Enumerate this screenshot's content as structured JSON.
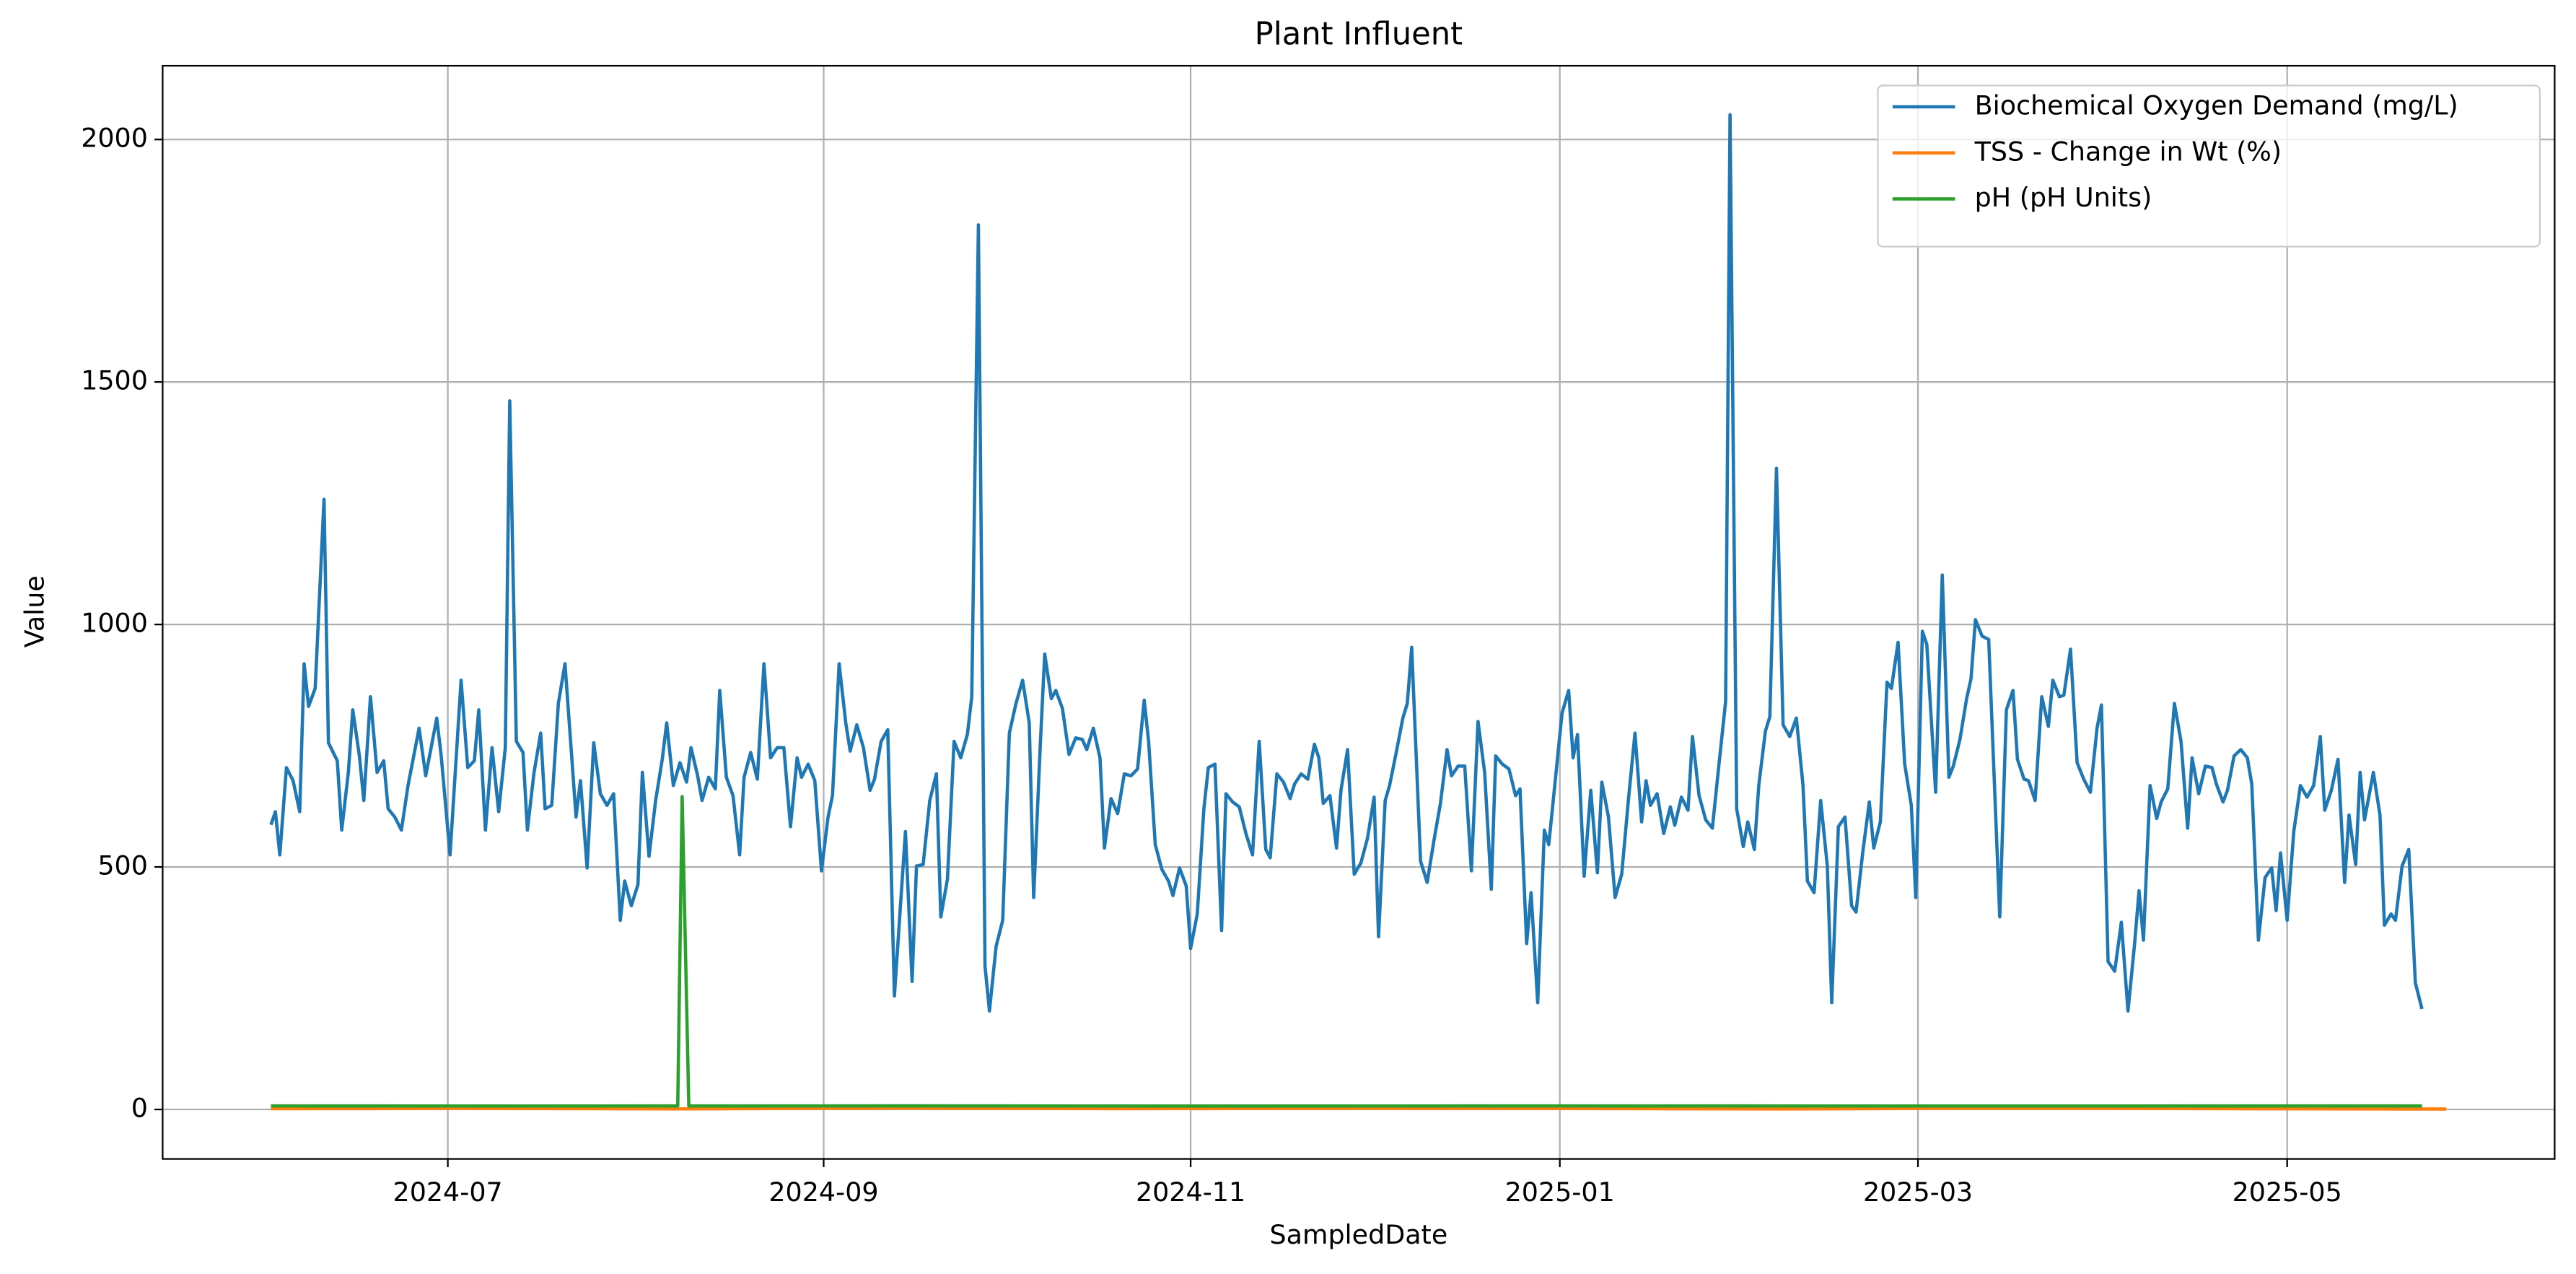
{
  "chart_data": {
    "type": "line",
    "title": "Plant Influent",
    "xlabel": "SampledDate",
    "ylabel": "Value",
    "xlim": [
      2024.368,
      2025.45
    ],
    "xticks": [
      {
        "value": 2024.497,
        "label": "2024-07"
      },
      {
        "value": 2024.667,
        "label": "2024-09"
      },
      {
        "value": 2024.833,
        "label": "2024-11"
      },
      {
        "value": 2025.0,
        "label": "2025-01"
      },
      {
        "value": 2025.162,
        "label": "2025-03"
      },
      {
        "value": 2025.329,
        "label": "2025-05"
      }
    ],
    "ylim": [
      -102,
      2152
    ],
    "yticks": [
      0,
      500,
      1000,
      1500,
      2000
    ],
    "grid": true,
    "legend": "upper right",
    "series": [
      {
        "name": "Biochemical Oxygen Demand (mg/L)",
        "color": "#1f77b4",
        "x": [
          2024.417,
          2024.419,
          2024.421,
          2024.424,
          2024.427,
          2024.43,
          2024.432,
          2024.434,
          2024.437,
          2024.441,
          2024.443,
          2024.447,
          2024.449,
          2024.452,
          2024.454,
          2024.457,
          2024.459,
          2024.462,
          2024.465,
          2024.468,
          2024.47,
          2024.473,
          2024.476,
          2024.479,
          2024.484,
          2024.487,
          2024.492,
          2024.494,
          2024.498,
          2024.503,
          2024.506,
          2024.509,
          2024.511,
          2024.514,
          2024.517,
          2024.52,
          2024.523,
          2024.525,
          2024.528,
          2024.531,
          2024.533,
          2024.536,
          2024.539,
          2024.541,
          2024.544,
          2024.547,
          2024.55,
          2024.552,
          2024.555,
          2024.557,
          2024.56,
          2024.563,
          2024.566,
          2024.569,
          2024.572,
          2024.575,
          2024.577,
          2024.58,
          2024.583,
          2024.585,
          2024.588,
          2024.591,
          2024.594,
          2024.596,
          2024.599,
          2024.602,
          2024.605,
          2024.607,
          2024.61,
          2024.612,
          2024.615,
          2024.618,
          2024.62,
          2024.623,
          2024.626,
          2024.629,
          2024.631,
          2024.634,
          2024.637,
          2024.64,
          2024.643,
          2024.646,
          2024.649,
          2024.652,
          2024.655,
          2024.657,
          2024.66,
          2024.663,
          2024.666,
          2024.669,
          2024.671,
          2024.674,
          2024.677,
          2024.679,
          2024.682,
          2024.685,
          2024.688,
          2024.69,
          2024.693,
          2024.696,
          2024.699,
          2024.704,
          2024.707,
          2024.709,
          2024.712,
          2024.715,
          2024.718,
          2024.72,
          2024.723,
          2024.726,
          2024.729,
          2024.732,
          2024.734,
          2024.737,
          2024.74,
          2024.742,
          2024.745,
          2024.748,
          2024.751,
          2024.754,
          2024.757,
          2024.76,
          2024.762,
          2024.765,
          2024.767,
          2024.77,
          2024.772,
          2024.775,
          2024.778,
          2024.781,
          2024.784,
          2024.786,
          2024.789,
          2024.792,
          2024.794,
          2024.797,
          2024.8,
          2024.803,
          2024.806,
          2024.809,
          2024.812,
          2024.814,
          2024.817,
          2024.82,
          2024.823,
          2024.825,
          2024.828,
          2024.831,
          2024.833,
          2024.836,
          2024.839,
          2024.841,
          2024.844,
          2024.847,
          2024.849,
          2024.852,
          2024.855,
          2024.858,
          2024.861,
          2024.864,
          2024.867,
          2024.869,
          2024.872,
          2024.875,
          2024.878,
          2024.88,
          2024.883,
          2024.886,
          2024.889,
          2024.891,
          2024.893,
          2024.896,
          2024.899,
          2024.901,
          2024.904,
          2024.907,
          2024.91,
          2024.913,
          2024.916,
          2024.918,
          2024.921,
          2024.923,
          2024.926,
          2024.929,
          2024.931,
          2024.933,
          2024.937,
          2024.94,
          2024.943,
          2024.946,
          2024.949,
          2024.951,
          2024.954,
          2024.957,
          2024.96,
          2024.963,
          2024.966,
          2024.969,
          2024.971,
          2024.974,
          2024.977,
          2024.98,
          2024.982,
          2024.985,
          2024.987,
          2024.99,
          2024.993,
          2024.995,
          2024.998,
          2025.001,
          2025.004,
          2025.006,
          2025.008,
          2025.011,
          2025.014,
          2025.017,
          2025.019,
          2025.022,
          2025.025,
          2025.028,
          2025.031,
          2025.034,
          2025.037,
          2025.039,
          2025.041,
          2025.044,
          2025.047,
          2025.05,
          2025.052,
          2025.055,
          2025.058,
          2025.06,
          2025.063,
          2025.066,
          2025.069,
          2025.072,
          2025.075,
          2025.077,
          2025.08,
          2025.083,
          2025.085,
          2025.088,
          2025.09,
          2025.093,
          2025.095,
          2025.098,
          2025.101,
          2025.104,
          2025.107,
          2025.11,
          2025.112,
          2025.115,
          2025.118,
          2025.121,
          2025.123,
          2025.126,
          2025.129,
          2025.132,
          2025.134,
          2025.137,
          2025.14,
          2025.142,
          2025.145,
          2025.148,
          2025.15,
          2025.153,
          2025.156,
          2025.159,
          2025.161,
          2025.164,
          2025.166,
          2025.17,
          2025.173,
          2025.176,
          2025.178,
          2025.181,
          2025.184,
          2025.186,
          2025.188,
          2025.191,
          2025.194,
          2025.196,
          2025.199,
          2025.202,
          2025.205,
          2025.207,
          2025.21,
          2025.212,
          2025.215,
          2025.218,
          2025.221,
          2025.223,
          2025.226,
          2025.228,
          2025.231,
          2025.234,
          2025.237,
          2025.24,
          2025.243,
          2025.245,
          2025.248,
          2025.251,
          2025.254,
          2025.257,
          2025.26,
          2025.262,
          2025.264,
          2025.267,
          2025.27,
          2025.272,
          2025.275,
          2025.278,
          2025.281,
          2025.284,
          2025.286,
          2025.289,
          2025.292,
          2025.295,
          2025.297,
          2025.3,
          2025.302,
          2025.305,
          2025.308,
          2025.311,
          2025.313,
          2025.316,
          2025.319,
          2025.322,
          2025.324,
          2025.326,
          2025.329,
          2025.332,
          2025.335,
          2025.338,
          2025.341,
          2025.344,
          2025.346,
          2025.349,
          2025.352,
          2025.355,
          2025.357,
          2025.36,
          2025.362,
          2025.364,
          2025.368,
          2025.371,
          2025.373,
          2025.376,
          2025.378,
          2025.381,
          2025.384,
          2025.387,
          2025.39
        ],
        "values": [
          587,
          614,
          525,
          705,
          678,
          614,
          919,
          831,
          868,
          1258,
          756,
          719,
          576,
          695,
          824,
          729,
          637,
          851,
          695,
          719,
          620,
          603,
          576,
          668,
          786,
          688,
          807,
          729,
          525,
          885,
          705,
          719,
          824,
          576,
          746,
          614,
          746,
          1461,
          759,
          736,
          576,
          695,
          776,
          620,
          627,
          837,
          919,
          793,
          603,
          678,
          498,
          756,
          651,
          627,
          651,
          390,
          471,
          420,
          464,
          695,
          522,
          637,
          722,
          797,
          668,
          715,
          675,
          746,
          688,
          637,
          685,
          661,
          864,
          685,
          647,
          525,
          685,
          736,
          681,
          919,
          725,
          746,
          746,
          583,
          725,
          685,
          712,
          678,
          492,
          603,
          647,
          919,
          797,
          739,
          793,
          746,
          658,
          681,
          759,
          783,
          234,
          573,
          264,
          502,
          505,
          637,
          692,
          397,
          475,
          759,
          725,
          773,
          851,
          1824,
          295,
          203,
          336,
          390,
          776,
          837,
          885,
          797,
          437,
          753,
          939,
          847,
          864,
          827,
          732,
          766,
          763,
          742,
          786,
          725,
          539,
          641,
          610,
          692,
          688,
          702,
          844,
          759,
          546,
          495,
          471,
          441,
          498,
          461,
          332,
          403,
          620,
          705,
          712,
          369,
          651,
          634,
          624,
          569,
          525,
          759,
          536,
          519,
          692,
          675,
          641,
          671,
          692,
          681,
          753,
          725,
          631,
          647,
          539,
          658,
          742,
          485,
          508,
          559,
          644,
          356,
          637,
          668,
          736,
          807,
          837,
          953,
          512,
          468,
          553,
          631,
          742,
          688,
          708,
          708,
          492,
          800,
          695,
          454,
          729,
          712,
          702,
          647,
          661,
          342,
          447,
          220,
          576,
          546,
          681,
          817,
          864,
          725,
          773,
          481,
          658,
          488,
          675,
          603,
          437,
          485,
          637,
          776,
          593,
          678,
          627,
          651,
          569,
          624,
          586,
          644,
          617,
          769,
          647,
          597,
          580,
          712,
          841,
          2051,
          620,
          542,
          593,
          536,
          668,
          780,
          810,
          1322,
          793,
          769,
          807,
          668,
          471,
          447,
          637,
          502,
          220,
          583,
          603,
          420,
          407,
          529,
          634,
          539,
          593,
          881,
          868,
          963,
          712,
          627,
          437,
          986,
          959,
          654,
          1102,
          685,
          708,
          763,
          847,
          888,
          1010,
          976,
          969,
          739,
          397,
          824,
          864,
          722,
          681,
          678,
          637,
          851,
          790,
          885,
          851,
          854,
          949,
          715,
          681,
          654,
          786,
          834,
          305,
          285,
          386,
          203,
          342,
          451,
          349,
          668,
          600,
          634,
          661,
          837,
          759,
          580,
          725,
          651,
          708,
          705,
          671,
          634,
          658,
          729,
          742,
          725,
          671,
          349,
          478,
          498,
          410,
          529,
          390,
          573,
          668,
          644,
          668,
          769,
          617,
          658,
          722,
          468,
          607,
          505,
          695,
          597,
          695,
          607,
          380,
          403,
          390,
          502,
          536,
          261,
          207
        ]
      },
      {
        "name": "TSS - Change in Wt (%)",
        "color": "#ff7f0e",
        "x": [
          2024.417,
          2024.5,
          2024.6,
          2024.7,
          2024.8,
          2024.9,
          2025.0,
          2025.1,
          2025.2,
          2025.3,
          2025.401
        ],
        "values": [
          1.5,
          2.1,
          1.2,
          2.8,
          1.6,
          2.4,
          1.9,
          1.1,
          2.6,
          1.7,
          0.9
        ]
      },
      {
        "name": "pH (pH Units)",
        "color": "#2ca02c",
        "x": [
          2024.417,
          2024.5,
          2024.601,
          2024.603,
          2024.606,
          2024.7,
          2024.85,
          2025.0,
          2025.15,
          2025.3,
          2025.39
        ],
        "values": [
          7.3,
          7.1,
          7.2,
          645,
          7.2,
          7.4,
          7.0,
          7.3,
          7.1,
          7.2,
          7.2
        ]
      }
    ]
  }
}
